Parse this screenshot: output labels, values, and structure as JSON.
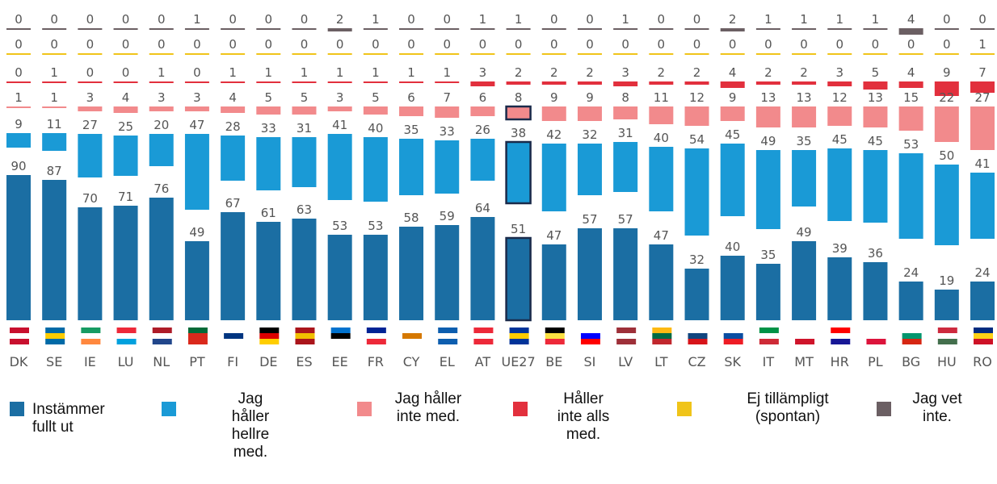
{
  "chart_data": {
    "type": "stacked-bar",
    "categories": [
      "DK",
      "SE",
      "IE",
      "LU",
      "NL",
      "PT",
      "FI",
      "DE",
      "ES",
      "EE",
      "FR",
      "CY",
      "EL",
      "AT",
      "UE27",
      "BE",
      "SI",
      "LV",
      "LT",
      "CZ",
      "SK",
      "IT",
      "MT",
      "HR",
      "PL",
      "BG",
      "HU",
      "RO"
    ],
    "series": [
      {
        "name": "Instämmer fullt ut",
        "color": "#1b6ea3",
        "values": [
          90,
          87,
          70,
          71,
          76,
          49,
          67,
          61,
          63,
          53,
          53,
          58,
          59,
          64,
          51,
          47,
          57,
          57,
          47,
          32,
          40,
          35,
          49,
          39,
          36,
          24,
          19,
          24
        ]
      },
      {
        "name": "Jag håller hellre med.",
        "color": "#1a9ad6",
        "values": [
          9,
          11,
          27,
          25,
          20,
          47,
          28,
          33,
          31,
          41,
          40,
          35,
          33,
          26,
          38,
          42,
          32,
          31,
          40,
          54,
          45,
          49,
          35,
          45,
          45,
          53,
          50,
          41
        ]
      },
      {
        "name": "Jag håller inte med.",
        "color": "#f28a8c",
        "values": [
          1,
          1,
          3,
          4,
          3,
          3,
          4,
          5,
          5,
          3,
          5,
          6,
          7,
          6,
          8,
          9,
          9,
          8,
          11,
          12,
          9,
          13,
          13,
          12,
          13,
          15,
          22,
          27
        ]
      },
      {
        "name": "Håller inte alls med.",
        "color": "#e2303d",
        "values": [
          0,
          1,
          0,
          0,
          1,
          0,
          1,
          1,
          1,
          1,
          1,
          1,
          1,
          3,
          2,
          2,
          2,
          3,
          2,
          2,
          4,
          2,
          2,
          3,
          5,
          4,
          9,
          7
        ]
      },
      {
        "name": "Ej tillämpligt (spontan)",
        "color": "#f0c419",
        "values": [
          0,
          0,
          0,
          0,
          0,
          0,
          0,
          0,
          0,
          0,
          0,
          0,
          0,
          0,
          0,
          0,
          0,
          0,
          0,
          0,
          0,
          0,
          0,
          0,
          0,
          0,
          0,
          1
        ]
      },
      {
        "name": "Jag vet inte.",
        "color": "#6b5f63",
        "values": [
          0,
          0,
          0,
          0,
          0,
          1,
          0,
          0,
          0,
          2,
          1,
          0,
          0,
          1,
          1,
          0,
          0,
          1,
          0,
          0,
          2,
          1,
          1,
          1,
          1,
          4,
          0,
          0
        ]
      }
    ]
  }
}
